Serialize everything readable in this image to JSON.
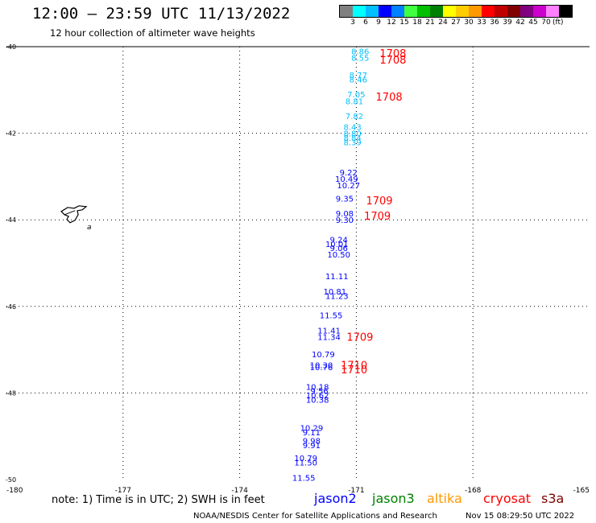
{
  "title": "12:00 – 23:59 UTC 11/13/2022",
  "subtitle": "12 hour collection of altimeter wave heights",
  "colorbar": {
    "colors": [
      "#808080",
      "#00ffff",
      "#00bfff",
      "#0000ff",
      "#0080ff",
      "#40ff40",
      "#00c000",
      "#008000",
      "#ffff00",
      "#ffcc00",
      "#ff9900",
      "#ff0000",
      "#c00000",
      "#800000",
      "#800080",
      "#cc00cc",
      "#ff80ff",
      "#000000"
    ],
    "labels": [
      "3",
      "6",
      "9",
      "12",
      "15",
      "18",
      "21",
      "24",
      "27",
      "30",
      "33",
      "36",
      "39",
      "42",
      "45",
      "70"
    ],
    "unit": "(ft)"
  },
  "axes": {
    "lat_labels": [
      "-40",
      "-42",
      "-44",
      "-46",
      "-48",
      "-50"
    ],
    "lon_labels": [
      "-180",
      "-177",
      "-174",
      "-171",
      "-168",
      "-165"
    ]
  },
  "map": {
    "lon_range": [
      -180,
      -165
    ],
    "lat_range": [
      -50,
      -40
    ],
    "island_label": "a"
  },
  "observations": [
    {
      "value": "8.86",
      "lon": -170.9,
      "lat": -40.1,
      "color": "#00bfff"
    },
    {
      "value": "8.55",
      "lon": -170.9,
      "lat": -40.25,
      "color": "#00bfff"
    },
    {
      "value": "8.77",
      "lon": -170.95,
      "lat": -40.65,
      "color": "#00bfff"
    },
    {
      "value": "8.46",
      "lon": -170.95,
      "lat": -40.75,
      "color": "#00bfff"
    },
    {
      "value": "7.05",
      "lon": -171.0,
      "lat": -41.1,
      "color": "#00bfff"
    },
    {
      "value": "8.81",
      "lon": -171.05,
      "lat": -41.25,
      "color": "#00bfff"
    },
    {
      "value": "7.82",
      "lon": -171.05,
      "lat": -41.6,
      "color": "#00bfff"
    },
    {
      "value": "8.43",
      "lon": -171.1,
      "lat": -41.85,
      "color": "#00bfff"
    },
    {
      "value": "8.80",
      "lon": -171.1,
      "lat": -42.0,
      "color": "#00bfff"
    },
    {
      "value": "8.84",
      "lon": -171.1,
      "lat": -42.1,
      "color": "#00bfff"
    },
    {
      "value": "8.39",
      "lon": -171.1,
      "lat": -42.2,
      "color": "#00bfff"
    },
    {
      "value": "9.22",
      "lon": -171.2,
      "lat": -42.9,
      "color": "#0000ff"
    },
    {
      "value": "10.49",
      "lon": -171.25,
      "lat": -43.05,
      "color": "#0000ff"
    },
    {
      "value": "10.27",
      "lon": -171.2,
      "lat": -43.2,
      "color": "#0000ff"
    },
    {
      "value": "9.35",
      "lon": -171.3,
      "lat": -43.5,
      "color": "#0000ff"
    },
    {
      "value": "9.08",
      "lon": -171.3,
      "lat": -43.85,
      "color": "#0000ff"
    },
    {
      "value": "9.30",
      "lon": -171.3,
      "lat": -44.0,
      "color": "#0000ff"
    },
    {
      "value": "9.24",
      "lon": -171.45,
      "lat": -44.45,
      "color": "#0000ff"
    },
    {
      "value": "10.01",
      "lon": -171.5,
      "lat": -44.55,
      "color": "#0000ff"
    },
    {
      "value": "9.06",
      "lon": -171.45,
      "lat": -44.65,
      "color": "#0000ff"
    },
    {
      "value": "10.50",
      "lon": -171.45,
      "lat": -44.8,
      "color": "#0000ff"
    },
    {
      "value": "11.11",
      "lon": -171.5,
      "lat": -45.3,
      "color": "#0000ff"
    },
    {
      "value": "10.81",
      "lon": -171.55,
      "lat": -45.65,
      "color": "#0000ff"
    },
    {
      "value": "11.23",
      "lon": -171.5,
      "lat": -45.75,
      "color": "#0000ff"
    },
    {
      "value": "11.55",
      "lon": -171.65,
      "lat": -46.2,
      "color": "#0000ff"
    },
    {
      "value": "11.41",
      "lon": -171.7,
      "lat": -46.55,
      "color": "#0000ff"
    },
    {
      "value": "11.34",
      "lon": -171.7,
      "lat": -46.7,
      "color": "#0000ff"
    },
    {
      "value": "10.79",
      "lon": -171.85,
      "lat": -47.1,
      "color": "#0000ff"
    },
    {
      "value": "10.30",
      "lon": -171.9,
      "lat": -47.35,
      "color": "#0000ff"
    },
    {
      "value": "10.76",
      "lon": -171.9,
      "lat": -47.4,
      "color": "#0000ff"
    },
    {
      "value": "10.18",
      "lon": -172.0,
      "lat": -47.85,
      "color": "#0000ff"
    },
    {
      "value": "9.56",
      "lon": -171.95,
      "lat": -47.95,
      "color": "#0000ff"
    },
    {
      "value": "10.62",
      "lon": -172.0,
      "lat": -48.05,
      "color": "#0000ff"
    },
    {
      "value": "10.38",
      "lon": -172.0,
      "lat": -48.15,
      "color": "#0000ff"
    },
    {
      "value": "10.29",
      "lon": -172.15,
      "lat": -48.8,
      "color": "#0000ff"
    },
    {
      "value": "9.11",
      "lon": -172.15,
      "lat": -48.9,
      "color": "#0000ff"
    },
    {
      "value": "9.98",
      "lon": -172.15,
      "lat": -49.1,
      "color": "#0000ff"
    },
    {
      "value": "9.91",
      "lon": -172.15,
      "lat": -49.2,
      "color": "#0000ff"
    },
    {
      "value": "10.79",
      "lon": -172.3,
      "lat": -49.5,
      "color": "#0000ff"
    },
    {
      "value": "11.50",
      "lon": -172.3,
      "lat": -49.6,
      "color": "#0000ff"
    },
    {
      "value": "11.55",
      "lon": -172.35,
      "lat": -49.95,
      "color": "#0000ff"
    }
  ],
  "time_labels": [
    {
      "text": "1708",
      "lon": -170.4,
      "lat": -40.15
    },
    {
      "text": "1708",
      "lon": -170.4,
      "lat": -40.3
    },
    {
      "text": "1708",
      "lon": -170.5,
      "lat": -41.15
    },
    {
      "text": "1709",
      "lon": -170.75,
      "lat": -43.55
    },
    {
      "text": "1709",
      "lon": -170.8,
      "lat": -43.9
    },
    {
      "text": "1709",
      "lon": -171.25,
      "lat": -46.7
    },
    {
      "text": "1710",
      "lon": -171.4,
      "lat": -47.35
    },
    {
      "text": "1710",
      "lon": -171.4,
      "lat": -47.45
    }
  ],
  "note": "note:  1) Time is in UTC;  2) SWH is in feet",
  "satellites": [
    {
      "name": "jason2",
      "color": "#0000ff"
    },
    {
      "name": "jason3",
      "color": "#008000"
    },
    {
      "name": "altika",
      "color": "#ff9900"
    },
    {
      "name": "cryosat",
      "color": "#ff0000"
    },
    {
      "name": "s3a",
      "color": "#800000"
    }
  ],
  "credit": "NOAA/NESDIS Center for Satellite Applications and Research",
  "timestamp": "Nov 15 08:29:50 UTC 2022"
}
